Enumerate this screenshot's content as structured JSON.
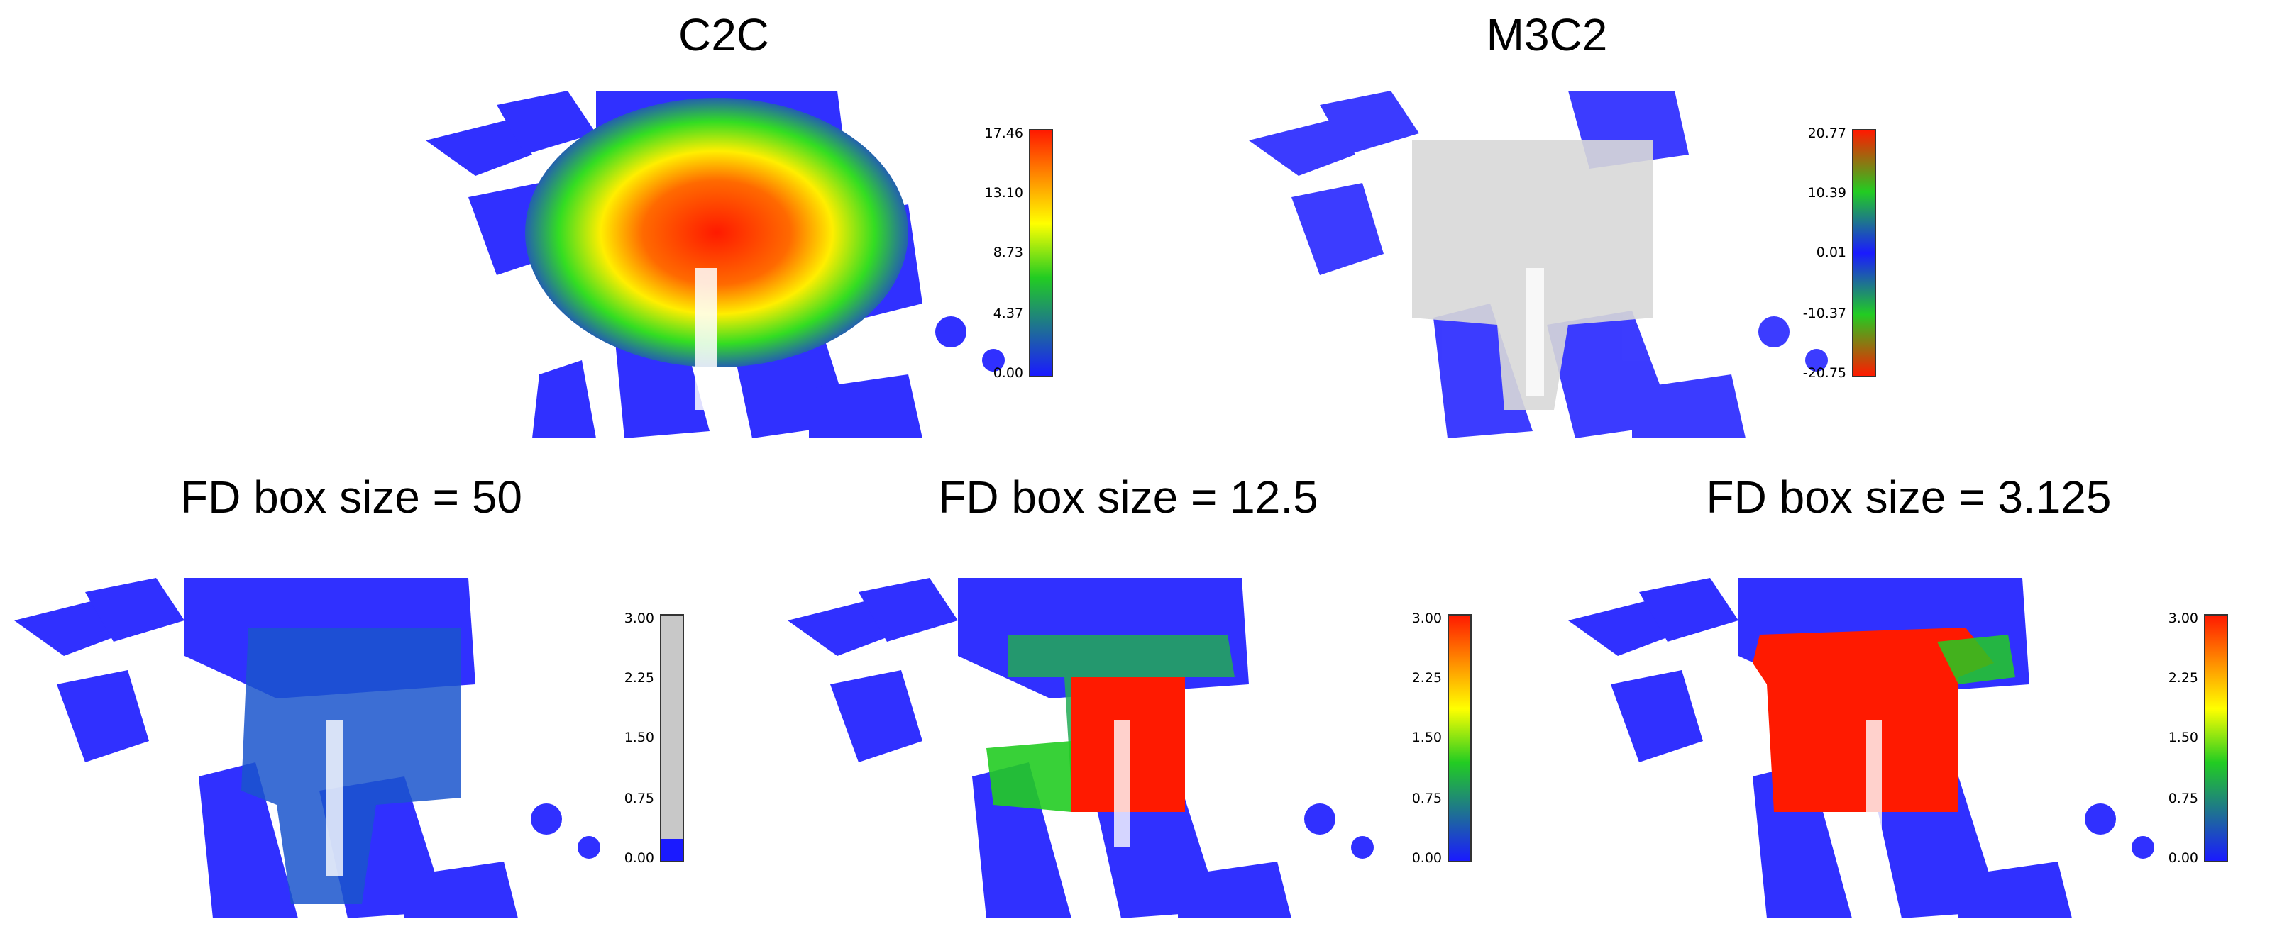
{
  "panels": [
    {
      "title": "C2C",
      "colorbar": {
        "scheme": "blue-green-yellow-red",
        "ticks": [
          "17.46",
          "13.10",
          "8.73",
          "4.37",
          "0.00"
        ]
      }
    },
    {
      "title": "M3C2",
      "colorbar": {
        "scheme": "red-green-blue-green-red",
        "ticks": [
          "20.77",
          "10.39",
          "0.01",
          "-10.37",
          "-20.75"
        ]
      }
    },
    {
      "title": "FD box size = 50",
      "colorbar": {
        "scheme": "grey-with-blue-base",
        "ticks": [
          "3.00",
          "2.25",
          "1.50",
          "0.75",
          "0.00"
        ]
      }
    },
    {
      "title": "FD box size = 12.5",
      "colorbar": {
        "scheme": "blue-green-yellow-red",
        "ticks": [
          "3.00",
          "2.25",
          "1.50",
          "0.75",
          "0.00"
        ]
      }
    },
    {
      "title": "FD box size = 3.125",
      "colorbar": {
        "scheme": "blue-green-yellow-red",
        "ticks": [
          "3.00",
          "2.25",
          "1.50",
          "0.75",
          "0.00"
        ]
      }
    }
  ],
  "colors": {
    "points": "#1a1aff",
    "grey_points": "#b8b8b8",
    "red": "#ff1a00",
    "green": "#22cc22",
    "yellow": "#ffff00"
  }
}
